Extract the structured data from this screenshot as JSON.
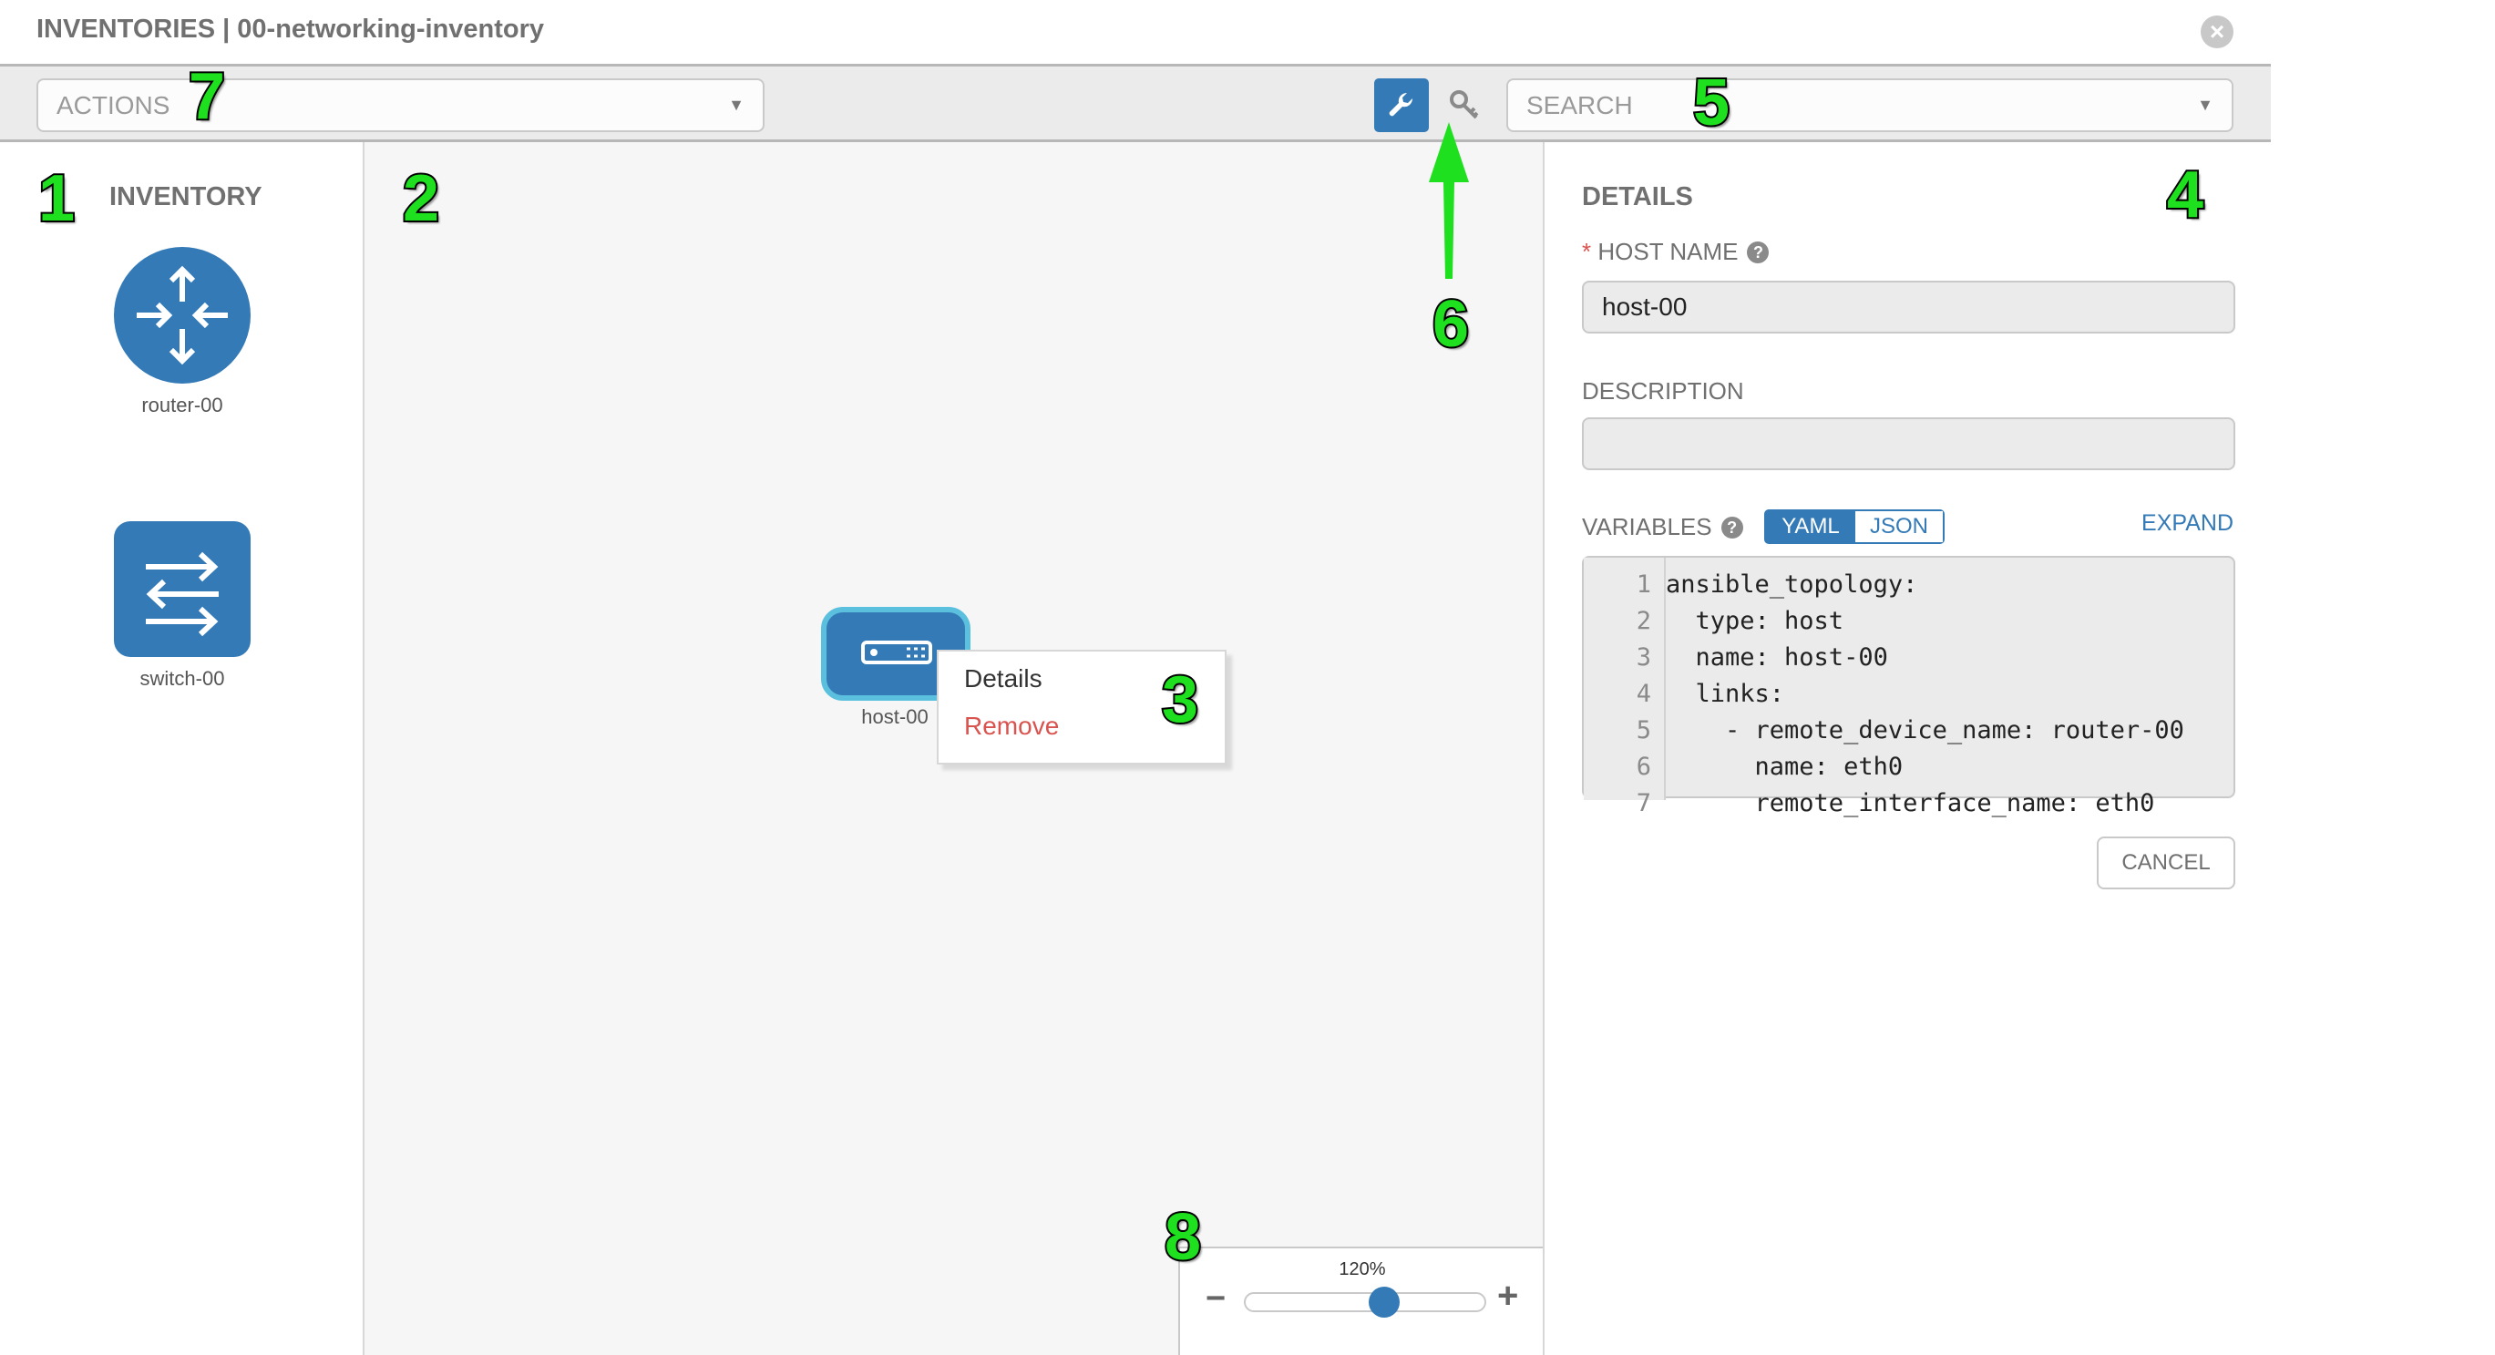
{
  "header": {
    "title": "INVENTORIES | 00-networking-inventory"
  },
  "toolbar": {
    "actions_placeholder": "ACTIONS",
    "search_placeholder": "SEARCH"
  },
  "inventory": {
    "title": "INVENTORY",
    "items": [
      {
        "label": "router-00",
        "icon": "router-icon"
      },
      {
        "label": "switch-00",
        "icon": "switch-icon"
      }
    ]
  },
  "canvas": {
    "host": {
      "label": "host-00",
      "icon": "host-icon"
    },
    "context_menu": {
      "details": "Details",
      "remove": "Remove"
    },
    "zoom": {
      "level": "120%",
      "value": 120,
      "minus": "−",
      "plus": "+"
    }
  },
  "details": {
    "title": "DETAILS",
    "host_name_label": "HOST NAME",
    "required_mark": "*",
    "host_name_value": "host-00",
    "description_label": "DESCRIPTION",
    "description_value": "",
    "variables_label": "VARIABLES",
    "yaml": "YAML",
    "json": "JSON",
    "expand": "EXPAND",
    "cancel": "CANCEL",
    "code": [
      {
        "n": "1",
        "t": "ansible_topology:"
      },
      {
        "n": "2",
        "t": "  type: host"
      },
      {
        "n": "3",
        "t": "  name: host-00"
      },
      {
        "n": "4",
        "t": "  links:"
      },
      {
        "n": "5",
        "t": "    - remote_device_name: router-00"
      },
      {
        "n": "6",
        "t": "      name: eth0"
      },
      {
        "n": "7",
        "t": "      remote_interface_name: eth0"
      }
    ]
  },
  "annotations": [
    "1",
    "2",
    "3",
    "4",
    "5",
    "6",
    "7",
    "8"
  ],
  "colors": {
    "accent": "#337ab7",
    "remove": "#d9534f",
    "annotation": "#1fe01f"
  }
}
